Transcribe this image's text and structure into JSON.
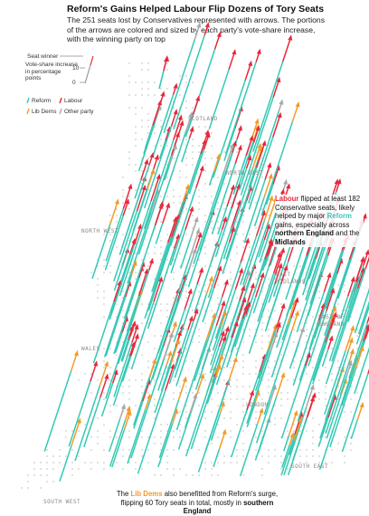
{
  "header": {
    "title": "Reform's Gains Helped Labour Flip Dozens of Tory Seats",
    "subtitle": "The 251 seats lost by Conservatives represented with arrows. The portions of the arrows are colored and sized by each party's vote-share increase, with the winning party on top"
  },
  "legend": {
    "winner": "Seat winner",
    "size": "Vote-share increase in percentage points",
    "high": "10",
    "low": "0",
    "parties": [
      {
        "name": "Reform",
        "color": "#35c9b5"
      },
      {
        "name": "Labour",
        "color": "#e8283c"
      },
      {
        "name": "Lib Dems",
        "color": "#f29b2a"
      },
      {
        "name": "Other party",
        "color": "#a9a9a9"
      }
    ]
  },
  "regions": [
    "SCOTLAND",
    "NORTH EAST",
    "NORTH WEST",
    "EAST MIDLANDS",
    "EAST OF ENGLAND",
    "WALES",
    "LONDON",
    "SOUTH EAST",
    "SOUTH WEST"
  ],
  "annotations": [
    [
      "Labour",
      " flipped at least 182 Conservative seats, likely helped by major ",
      "Reform",
      " gains, especially across ",
      "northern England",
      " and the ",
      "Midlands"
    ],
    [
      "The ",
      "Lib Dems",
      " also benefitted from Reform's surge, flipping 60 Tory seats in total, mostly in ",
      "southern England"
    ]
  ]
}
